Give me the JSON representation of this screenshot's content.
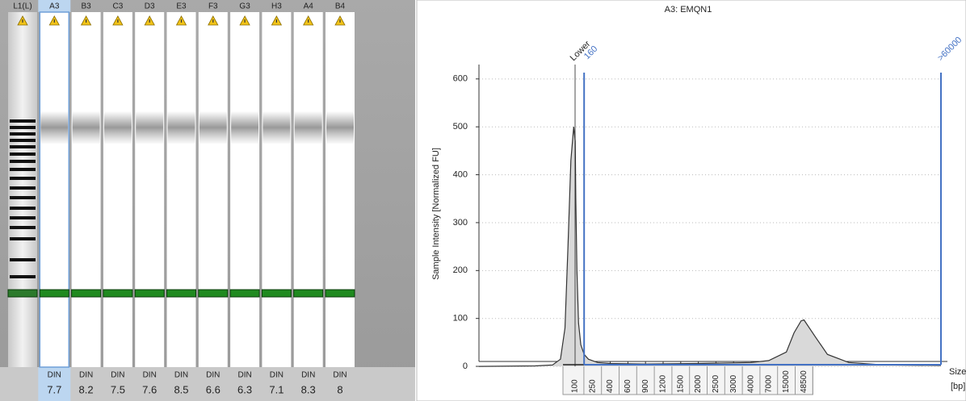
{
  "gel": {
    "lanes": [
      {
        "label": "L1(L)"
      },
      {
        "label": "A3",
        "din_label": "DIN",
        "din": 7.7
      },
      {
        "label": "B3",
        "din_label": "DIN",
        "din": 8.2
      },
      {
        "label": "C3",
        "din_label": "DIN",
        "din": 7.5
      },
      {
        "label": "D3",
        "din_label": "DIN",
        "din": 7.6
      },
      {
        "label": "E3",
        "din_label": "DIN",
        "din": 8.5
      },
      {
        "label": "F3",
        "din_label": "DIN",
        "din": 6.6
      },
      {
        "label": "G3",
        "din_label": "DIN",
        "din": 6.3
      },
      {
        "label": "H3",
        "din_label": "DIN",
        "din": 7.1
      },
      {
        "label": "A4",
        "din_label": "DIN",
        "din": 8.3
      },
      {
        "label": "B4",
        "din_label": "DIN",
        "din": 8.0
      }
    ]
  },
  "chart_data": {
    "type": "area",
    "title": "A3: EMQN1",
    "ylabel": "Sample Intensity [Normalized FU]",
    "xlabel": "Size",
    "xunit": "[bp]",
    "x": [
      50,
      75,
      85,
      90,
      93,
      95,
      97,
      99,
      101,
      104,
      110,
      120,
      135,
      160,
      200,
      285,
      400,
      900,
      2000,
      4000,
      7000,
      15000,
      25000,
      40000,
      48500,
      49400,
      50300,
      52000,
      55000,
      60000
    ],
    "values": [
      0,
      1,
      3,
      15,
      80,
      250,
      430,
      500,
      470,
      350,
      200,
      90,
      45,
      25,
      15,
      8,
      6,
      5,
      6,
      8,
      12,
      30,
      70,
      95,
      97,
      60,
      25,
      8,
      3,
      2
    ],
    "color": "#d9d9d9",
    "line_color": "#333333",
    "xlim": [
      50,
      60000
    ],
    "xticks": [
      100,
      250,
      400,
      600,
      900,
      1200,
      1500,
      2000,
      2500,
      3000,
      4000,
      7000,
      15000,
      48500
    ],
    "ylim": [
      -10,
      630
    ],
    "yticks": [
      0,
      100,
      200,
      300,
      400,
      500,
      600
    ],
    "grid": true,
    "annotations": [
      {
        "text": "Lower",
        "x": 100
      }
    ],
    "region": {
      "start": 160,
      "end": {
        "value": 60000,
        "label": ">60000"
      },
      "color": "#4472c4"
    }
  }
}
